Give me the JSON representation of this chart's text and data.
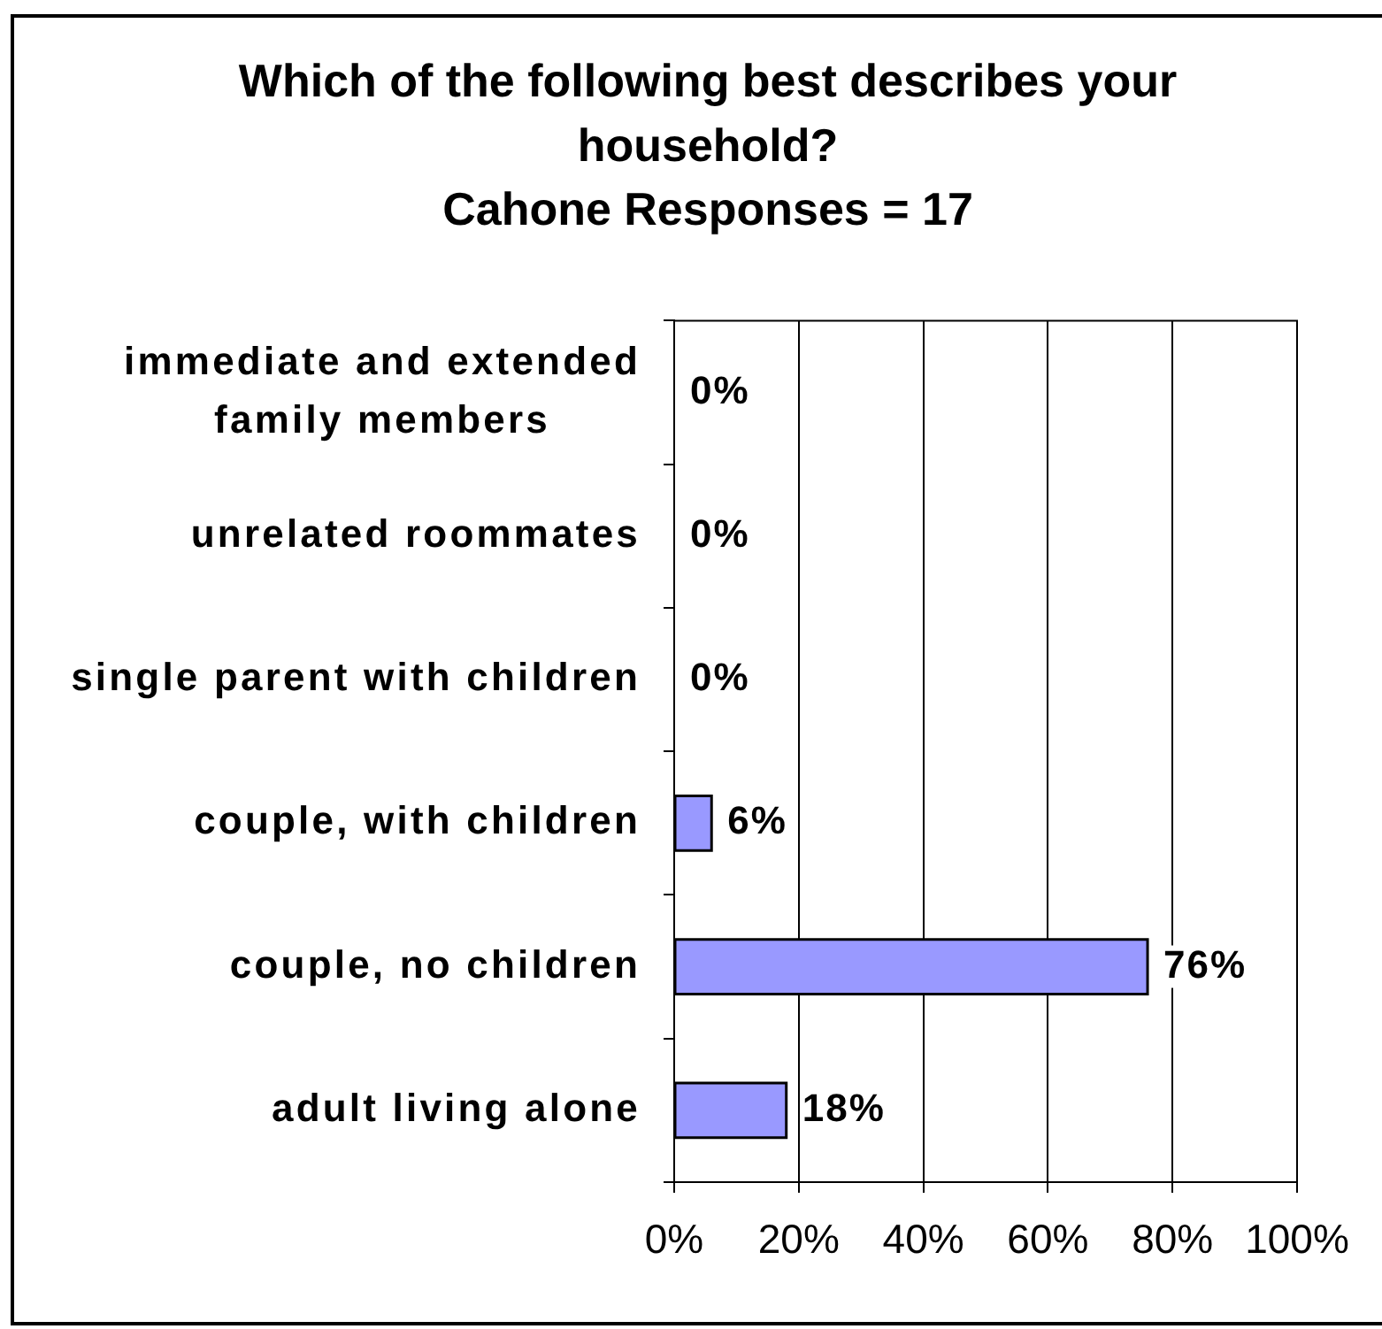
{
  "chart_data": {
    "type": "bar",
    "orientation": "horizontal",
    "title": "Which of the following best describes your household?",
    "subtitle": "Cahone Responses = 17",
    "categories": [
      "immediate and extended family members",
      "unrelated roommates",
      "single parent with children",
      "couple, with children",
      "couple, no children",
      "adult living alone"
    ],
    "values": [
      0,
      0,
      0,
      6,
      76,
      18
    ],
    "color": "#9999ff",
    "value_labels": [
      "0%",
      "0%",
      "0%",
      "6%",
      "76%",
      "18%"
    ],
    "xlim": [
      0,
      100
    ],
    "xticks": [
      {
        "value": 0,
        "label": "0%"
      },
      {
        "value": 20,
        "label": "20%"
      },
      {
        "value": 40,
        "label": "40%"
      },
      {
        "value": 60,
        "label": "60%"
      },
      {
        "value": 80,
        "label": "80%"
      },
      {
        "value": 100,
        "label": "100%"
      }
    ],
    "grid": "x"
  }
}
